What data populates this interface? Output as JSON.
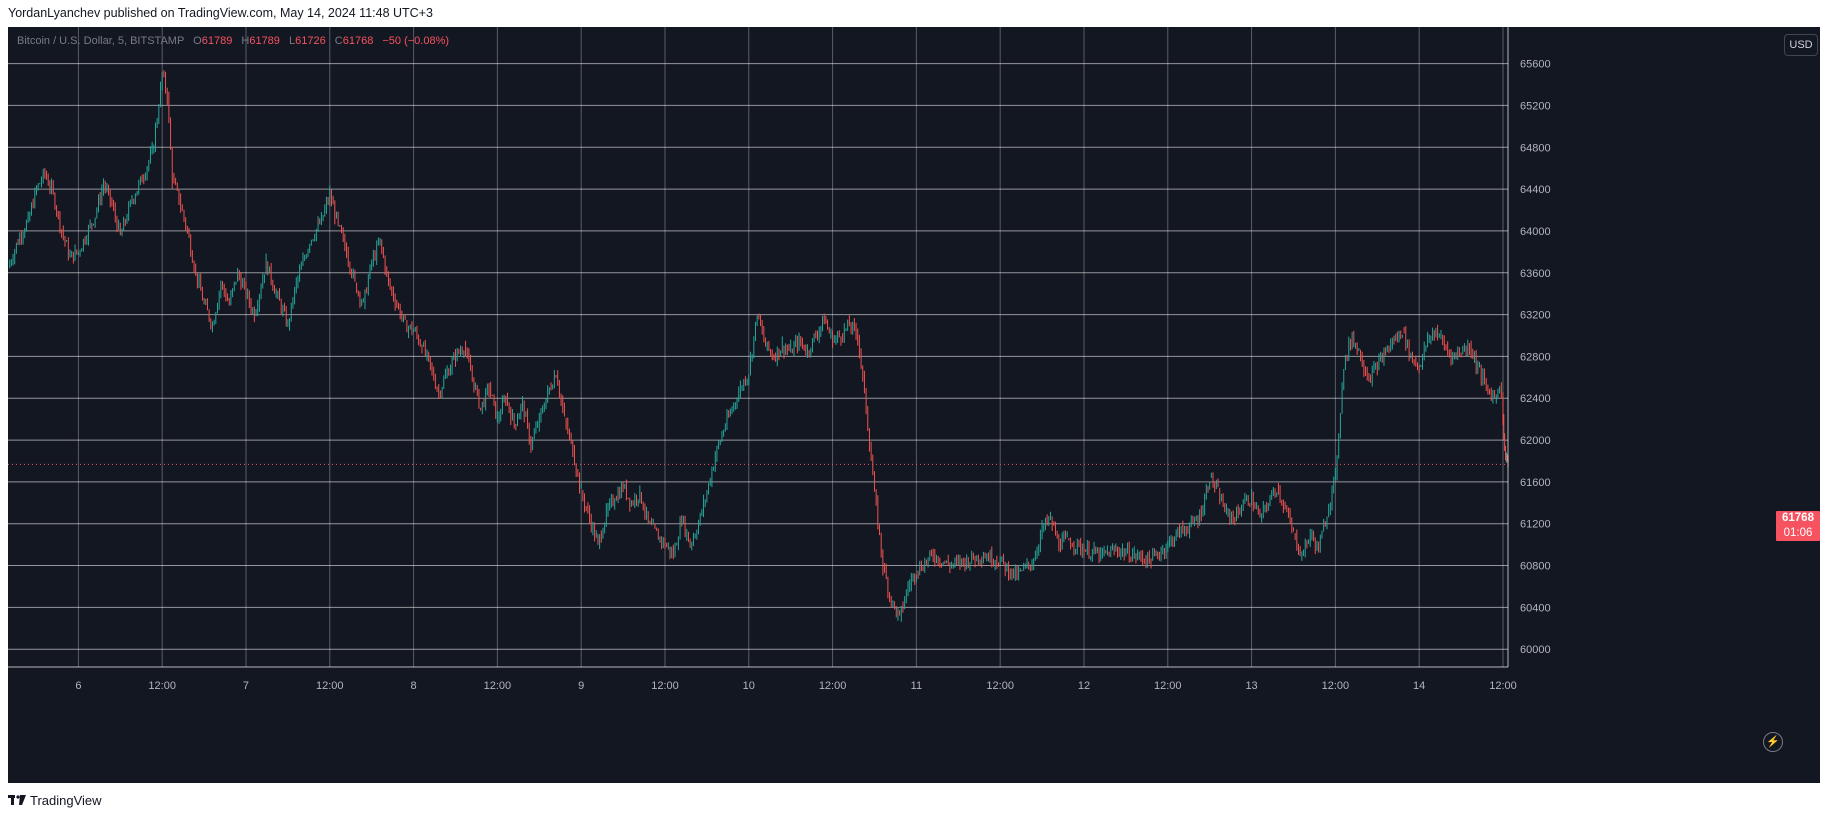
{
  "header": {
    "published_text": "YordanLyanchev published on TradingView.com, May 14, 2024 11:48 UTC+3"
  },
  "legend": {
    "symbol": "Bitcoin / U.S. Dollar, 5, BITSTAMP",
    "open_label": "O",
    "open": "61789",
    "high_label": "H",
    "high": "61789",
    "low_label": "L",
    "low": "61726",
    "close_label": "C",
    "close": "61768",
    "change": "−50 (−0.08%)"
  },
  "currency_button": "USD",
  "last_price": {
    "value": "61768",
    "countdown": "01:06"
  },
  "footer": {
    "brand": "TradingView"
  },
  "colors": {
    "up": "#26a69a",
    "down": "#ef5350",
    "background": "#131722",
    "grid": "#ffffff"
  },
  "chart_data": {
    "type": "line",
    "title": "Bitcoin / U.S. Dollar, 5, BITSTAMP",
    "xlabel": "",
    "ylabel": "",
    "ylim": [
      59830,
      65950
    ],
    "grid": true,
    "y_ticks": [
      60000,
      60400,
      60800,
      61200,
      61600,
      62000,
      62400,
      62800,
      63200,
      63600,
      64000,
      64400,
      64800,
      65200,
      65600
    ],
    "x_tick_labels": [
      {
        "label": "6",
        "t": 0.0
      },
      {
        "label": "12:00",
        "t": 0.5
      },
      {
        "label": "7",
        "t": 1.0
      },
      {
        "label": "12:00",
        "t": 1.5
      },
      {
        "label": "8",
        "t": 2.0
      },
      {
        "label": "12:00",
        "t": 2.5
      },
      {
        "label": "9",
        "t": 3.0
      },
      {
        "label": "12:00",
        "t": 3.5
      },
      {
        "label": "10",
        "t": 4.0
      },
      {
        "label": "12:00",
        "t": 4.5
      },
      {
        "label": "11",
        "t": 5.0
      },
      {
        "label": "12:00",
        "t": 5.5
      },
      {
        "label": "12",
        "t": 6.0
      },
      {
        "label": "12:00",
        "t": 6.5
      },
      {
        "label": "13",
        "t": 7.0
      },
      {
        "label": "12:00",
        "t": 7.5
      },
      {
        "label": "14",
        "t": 8.0
      },
      {
        "label": "12:00",
        "t": 8.5
      }
    ],
    "x_range": [
      -0.42,
      8.53
    ],
    "last_price": 61768,
    "series": [
      {
        "values": [
          [
            -0.42,
            63650
          ],
          [
            -0.35,
            63950
          ],
          [
            -0.3,
            64100
          ],
          [
            -0.25,
            64400
          ],
          [
            -0.2,
            64550
          ],
          [
            -0.15,
            64350
          ],
          [
            -0.1,
            64000
          ],
          [
            -0.05,
            63750
          ],
          [
            0.0,
            63800
          ],
          [
            0.1,
            64150
          ],
          [
            0.15,
            64450
          ],
          [
            0.2,
            64250
          ],
          [
            0.25,
            63950
          ],
          [
            0.32,
            64300
          ],
          [
            0.38,
            64500
          ],
          [
            0.44,
            64750
          ],
          [
            0.48,
            65200
          ],
          [
            0.5,
            65500
          ],
          [
            0.53,
            65300
          ],
          [
            0.56,
            64500
          ],
          [
            0.6,
            64300
          ],
          [
            0.65,
            64000
          ],
          [
            0.7,
            63600
          ],
          [
            0.75,
            63300
          ],
          [
            0.8,
            63100
          ],
          [
            0.85,
            63500
          ],
          [
            0.9,
            63300
          ],
          [
            0.95,
            63600
          ],
          [
            1.0,
            63400
          ],
          [
            1.05,
            63200
          ],
          [
            1.12,
            63700
          ],
          [
            1.18,
            63400
          ],
          [
            1.25,
            63100
          ],
          [
            1.3,
            63500
          ],
          [
            1.38,
            63900
          ],
          [
            1.45,
            64100
          ],
          [
            1.5,
            64350
          ],
          [
            1.55,
            64050
          ],
          [
            1.6,
            63800
          ],
          [
            1.65,
            63500
          ],
          [
            1.7,
            63300
          ],
          [
            1.75,
            63700
          ],
          [
            1.8,
            63900
          ],
          [
            1.85,
            63500
          ],
          [
            1.9,
            63300
          ],
          [
            1.95,
            63100
          ],
          [
            2.0,
            63050
          ],
          [
            2.05,
            62900
          ],
          [
            2.1,
            62700
          ],
          [
            2.15,
            62450
          ],
          [
            2.2,
            62650
          ],
          [
            2.25,
            62800
          ],
          [
            2.3,
            62900
          ],
          [
            2.35,
            62600
          ],
          [
            2.4,
            62300
          ],
          [
            2.45,
            62500
          ],
          [
            2.5,
            62200
          ],
          [
            2.55,
            62400
          ],
          [
            2.6,
            62150
          ],
          [
            2.65,
            62350
          ],
          [
            2.7,
            61950
          ],
          [
            2.75,
            62200
          ],
          [
            2.8,
            62450
          ],
          [
            2.85,
            62650
          ],
          [
            2.9,
            62200
          ],
          [
            2.95,
            61900
          ],
          [
            3.0,
            61500
          ],
          [
            3.05,
            61250
          ],
          [
            3.1,
            61000
          ],
          [
            3.15,
            61300
          ],
          [
            3.2,
            61450
          ],
          [
            3.25,
            61550
          ],
          [
            3.3,
            61400
          ],
          [
            3.35,
            61500
          ],
          [
            3.4,
            61200
          ],
          [
            3.45,
            61100
          ],
          [
            3.5,
            61000
          ],
          [
            3.55,
            60900
          ],
          [
            3.6,
            61250
          ],
          [
            3.65,
            61000
          ],
          [
            3.7,
            61200
          ],
          [
            3.75,
            61500
          ],
          [
            3.8,
            61850
          ],
          [
            3.85,
            62100
          ],
          [
            3.9,
            62300
          ],
          [
            3.95,
            62500
          ],
          [
            4.0,
            62650
          ],
          [
            4.05,
            63200
          ],
          [
            4.1,
            62900
          ],
          [
            4.15,
            62800
          ],
          [
            4.2,
            62900
          ],
          [
            4.25,
            62850
          ],
          [
            4.3,
            62950
          ],
          [
            4.35,
            62850
          ],
          [
            4.4,
            63000
          ],
          [
            4.45,
            63150
          ],
          [
            4.5,
            62950
          ],
          [
            4.55,
            63000
          ],
          [
            4.6,
            63100
          ],
          [
            4.65,
            63000
          ],
          [
            4.7,
            62300
          ],
          [
            4.75,
            61500
          ],
          [
            4.8,
            60800
          ],
          [
            4.85,
            60450
          ],
          [
            4.9,
            60300
          ],
          [
            4.95,
            60600
          ],
          [
            5.0,
            60750
          ],
          [
            5.1,
            60900
          ],
          [
            5.2,
            60800
          ],
          [
            5.3,
            60850
          ],
          [
            5.4,
            60900
          ],
          [
            5.5,
            60850
          ],
          [
            5.55,
            60750
          ],
          [
            5.6,
            60700
          ],
          [
            5.7,
            60850
          ],
          [
            5.75,
            61150
          ],
          [
            5.8,
            61250
          ],
          [
            5.85,
            61000
          ],
          [
            5.9,
            61050
          ],
          [
            6.0,
            60950
          ],
          [
            6.1,
            60900
          ],
          [
            6.2,
            60950
          ],
          [
            6.3,
            60900
          ],
          [
            6.4,
            60850
          ],
          [
            6.5,
            61000
          ],
          [
            6.55,
            61100
          ],
          [
            6.6,
            61150
          ],
          [
            6.65,
            61200
          ],
          [
            6.7,
            61300
          ],
          [
            6.75,
            61650
          ],
          [
            6.8,
            61500
          ],
          [
            6.85,
            61300
          ],
          [
            6.9,
            61250
          ],
          [
            6.95,
            61400
          ],
          [
            7.0,
            61450
          ],
          [
            7.05,
            61250
          ],
          [
            7.1,
            61400
          ],
          [
            7.15,
            61550
          ],
          [
            7.2,
            61350
          ],
          [
            7.25,
            61100
          ],
          [
            7.3,
            60900
          ],
          [
            7.35,
            61100
          ],
          [
            7.4,
            60950
          ],
          [
            7.45,
            61300
          ],
          [
            7.5,
            61650
          ],
          [
            7.53,
            62300
          ],
          [
            7.55,
            62700
          ],
          [
            7.6,
            63000
          ],
          [
            7.65,
            62800
          ],
          [
            7.7,
            62600
          ],
          [
            7.75,
            62700
          ],
          [
            7.8,
            62850
          ],
          [
            7.85,
            62950
          ],
          [
            7.9,
            63050
          ],
          [
            7.95,
            62800
          ],
          [
            8.0,
            62700
          ],
          [
            8.05,
            62950
          ],
          [
            8.1,
            63050
          ],
          [
            8.15,
            62900
          ],
          [
            8.2,
            62800
          ],
          [
            8.25,
            62850
          ],
          [
            8.3,
            62900
          ],
          [
            8.35,
            62700
          ],
          [
            8.4,
            62500
          ],
          [
            8.45,
            62400
          ],
          [
            8.48,
            62550
          ],
          [
            8.5,
            62200
          ],
          [
            8.51,
            61900
          ],
          [
            8.52,
            61850
          ],
          [
            8.53,
            61768
          ]
        ]
      }
    ]
  }
}
